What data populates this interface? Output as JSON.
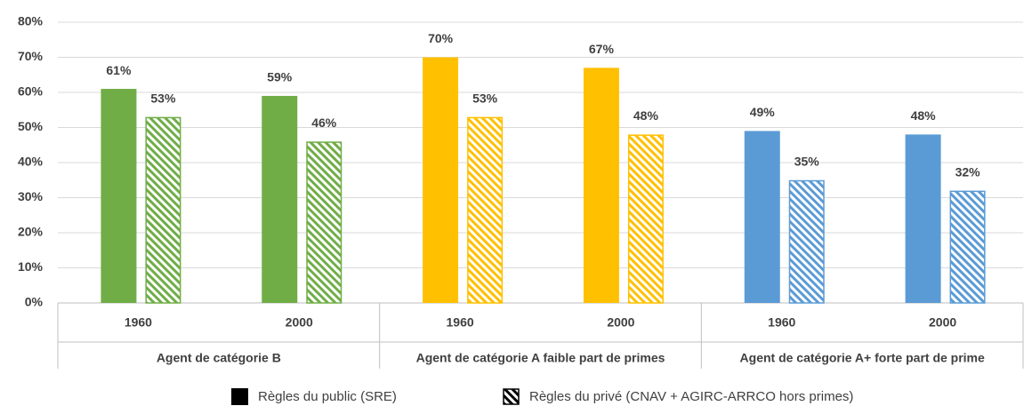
{
  "chart_data": {
    "type": "bar",
    "groups": [
      {
        "label": "Agent de catégorie B",
        "color": "#70ad47"
      },
      {
        "label": "Agent de catégorie A faible part de primes",
        "color": "#ffc000"
      },
      {
        "label": "Agent de catégorie A+ forte part de prime",
        "color": "#5b9bd5"
      }
    ],
    "categories": [
      "1960",
      "2000",
      "1960",
      "2000",
      "1960",
      "2000"
    ],
    "series": [
      {
        "name": "Règles du public (SRE)",
        "color": "#000000",
        "pattern": "solid",
        "values": [
          61,
          59,
          70,
          67,
          49,
          48
        ],
        "value_labels": [
          "61%",
          "59%",
          "70%",
          "67%",
          "49%",
          "48%"
        ]
      },
      {
        "name": "Règles du privé (CNAV + AGIRC-ARRCO hors primes)",
        "color": "#000000",
        "pattern": "hatch",
        "values": [
          53,
          46,
          53,
          48,
          35,
          32
        ],
        "value_labels": [
          "53%",
          "46%",
          "53%",
          "48%",
          "35%",
          "32%"
        ]
      }
    ],
    "ylim": [
      0,
      80
    ],
    "yticks": [
      {
        "value": 0,
        "label": "0%"
      },
      {
        "value": 10,
        "label": "10%"
      },
      {
        "value": 20,
        "label": "20%"
      },
      {
        "value": 30,
        "label": "30%"
      },
      {
        "value": 40,
        "label": "40%"
      },
      {
        "value": 50,
        "label": "50%"
      },
      {
        "value": 60,
        "label": "60%"
      },
      {
        "value": 70,
        "label": "70%"
      },
      {
        "value": 80,
        "label": "80%"
      }
    ],
    "grid": true,
    "legend": "bottom"
  }
}
